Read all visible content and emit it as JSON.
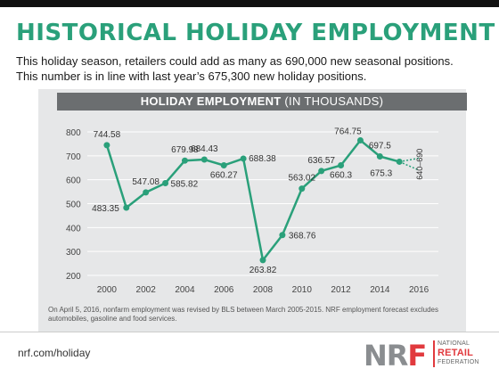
{
  "header": {
    "title": "HISTORICAL HOLIDAY EMPLOYMENT",
    "subtitle_line1": "This holiday season, retailers could add as many as 690,000 new seasonal positions.",
    "subtitle_line2": "This number is in line with last year’s 675,300 new holiday positions."
  },
  "panel": {
    "heading_bold": "HOLIDAY EMPLOYMENT",
    "heading_rest": " (IN THOUSANDS)"
  },
  "chart_data": {
    "type": "line",
    "title": "HOLIDAY EMPLOYMENT (IN THOUSANDS)",
    "x": [
      2000,
      2001,
      2002,
      2003,
      2004,
      2005,
      2006,
      2007,
      2008,
      2009,
      2010,
      2011,
      2012,
      2013,
      2014,
      2015
    ],
    "values": [
      744.58,
      483.35,
      547.08,
      585.82,
      679.98,
      684.43,
      660.27,
      688.38,
      263.82,
      368.76,
      563.02,
      636.57,
      660.3,
      764.75,
      697.5,
      675.3
    ],
    "labels": [
      "744.58",
      "483.35",
      "547.08",
      "585.82",
      "679.98",
      "684.43",
      "660.27",
      "688.38",
      "263.82",
      "368.76",
      "563.02",
      "636.57",
      "660.3",
      "764.75",
      "697.5",
      "675.3"
    ],
    "forecast": {
      "x": 2016,
      "low": 640,
      "high": 690,
      "label": "640–690"
    },
    "xticks": [
      "2000",
      "2002",
      "2004",
      "2006",
      "2008",
      "2010",
      "2012",
      "2014",
      "2016"
    ],
    "yticks": [
      "200",
      "300",
      "400",
      "500",
      "600",
      "700",
      "800"
    ],
    "xlim": [
      1999,
      2017
    ],
    "ylim": [
      200,
      800
    ],
    "grid": true,
    "color": "#2aa07a"
  },
  "footnote": "On April 5, 2016, nonfarm employment was revised by BLS between March 2005-2015. NRF employment forecast excludes automobiles, gasoline and food services.",
  "footer": {
    "url": "nrf.com/holiday",
    "logo_mark_left": "NR",
    "logo_mark_right": "F",
    "logo_line1": "NATIONAL",
    "logo_line2": "RETAIL",
    "logo_line3": "FEDERATION"
  }
}
